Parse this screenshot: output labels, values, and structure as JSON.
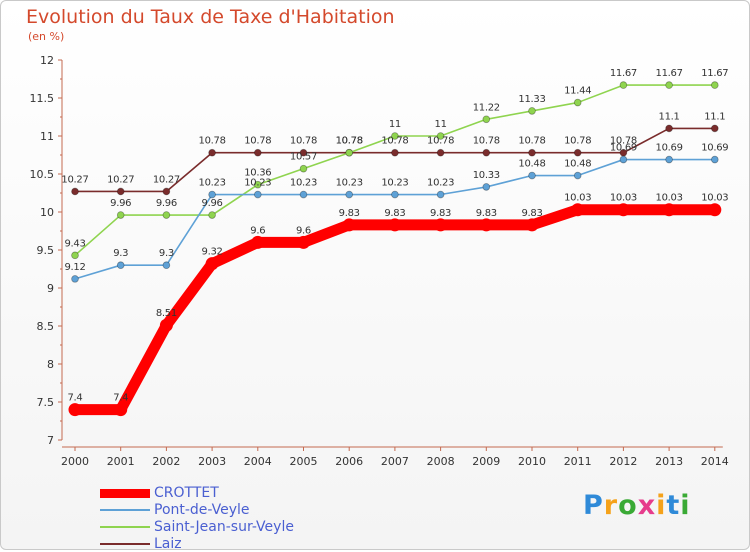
{
  "chart_data": {
    "type": "line",
    "title": "Evolution du Taux de Taxe d'Habitation",
    "subtitle": "(en %)",
    "x": [
      "2000",
      "2001",
      "2002",
      "2003",
      "2004",
      "2005",
      "2006",
      "2007",
      "2008",
      "2009",
      "2010",
      "2011",
      "2012",
      "2013",
      "2014"
    ],
    "ylim": [
      7,
      12
    ],
    "yticks": [
      "7",
      "7.5",
      "8",
      "8.5",
      "9",
      "9.5",
      "10",
      "10.5",
      "11",
      "11.5",
      "12"
    ],
    "grid": false,
    "legend_position": "bottom-left",
    "series": [
      {
        "name": "CROTTET",
        "color": "#ff0000",
        "values": [
          7.4,
          7.4,
          8.51,
          9.32,
          9.6,
          9.6,
          9.83,
          9.83,
          9.83,
          9.83,
          9.83,
          10.03,
          10.03,
          10.03,
          10.03
        ],
        "labels": [
          "7.4",
          "7.4",
          "8.51",
          "9.32",
          "9.6",
          "9.6",
          "9.83",
          "9.83",
          "9.83",
          "9.83",
          "9.83",
          "10.03",
          "10.03",
          "10.03",
          "10.03"
        ]
      },
      {
        "name": "Pont-de-Veyle",
        "color": "#5ea1d6",
        "values": [
          9.12,
          9.3,
          9.3,
          10.23,
          10.23,
          10.23,
          10.23,
          10.23,
          10.23,
          10.33,
          10.48,
          10.48,
          10.69,
          10.69,
          10.69
        ],
        "labels": [
          "9.12",
          "9.3",
          "9.3",
          "10.23",
          "10.23",
          "10.23",
          "10.23",
          "10.23",
          "10.23",
          "10.33",
          "10.48",
          "10.48",
          "10.69",
          "10.69",
          "10.69"
        ]
      },
      {
        "name": "Saint-Jean-sur-Veyle",
        "color": "#8fd44f",
        "values": [
          9.43,
          9.96,
          9.96,
          9.96,
          10.36,
          10.57,
          10.78,
          11,
          11,
          11.22,
          11.33,
          11.44,
          11.67,
          11.67,
          11.67
        ],
        "labels": [
          "9.43",
          "9.96",
          "9.96",
          "9.96",
          "10.36",
          "10.57",
          "10.78",
          "11",
          "11",
          "11.22",
          "11.33",
          "11.44",
          "11.67",
          "11.67",
          "11.67"
        ]
      },
      {
        "name": "Laiz",
        "color": "#7a2c2c",
        "values": [
          10.27,
          10.27,
          10.27,
          10.78,
          10.78,
          10.78,
          10.78,
          10.78,
          10.78,
          10.78,
          10.78,
          10.78,
          10.78,
          11.1,
          11.1
        ],
        "labels": [
          "10.27",
          "10.27",
          "10.27",
          "10.78",
          "10.78",
          "10.78",
          "10.78",
          "10.78",
          "10.78",
          "10.78",
          "10.78",
          "10.78",
          "10.78",
          "11.1",
          "11.1"
        ]
      }
    ]
  },
  "logo": {
    "letters": [
      "P",
      "r",
      "o",
      "x",
      "i",
      "t",
      "i"
    ],
    "colors": [
      "#2f8ad8",
      "#f5a21a",
      "#3aaa35",
      "#e63c8c",
      "#f5a21a",
      "#2f8ad8",
      "#3aaa35"
    ]
  }
}
